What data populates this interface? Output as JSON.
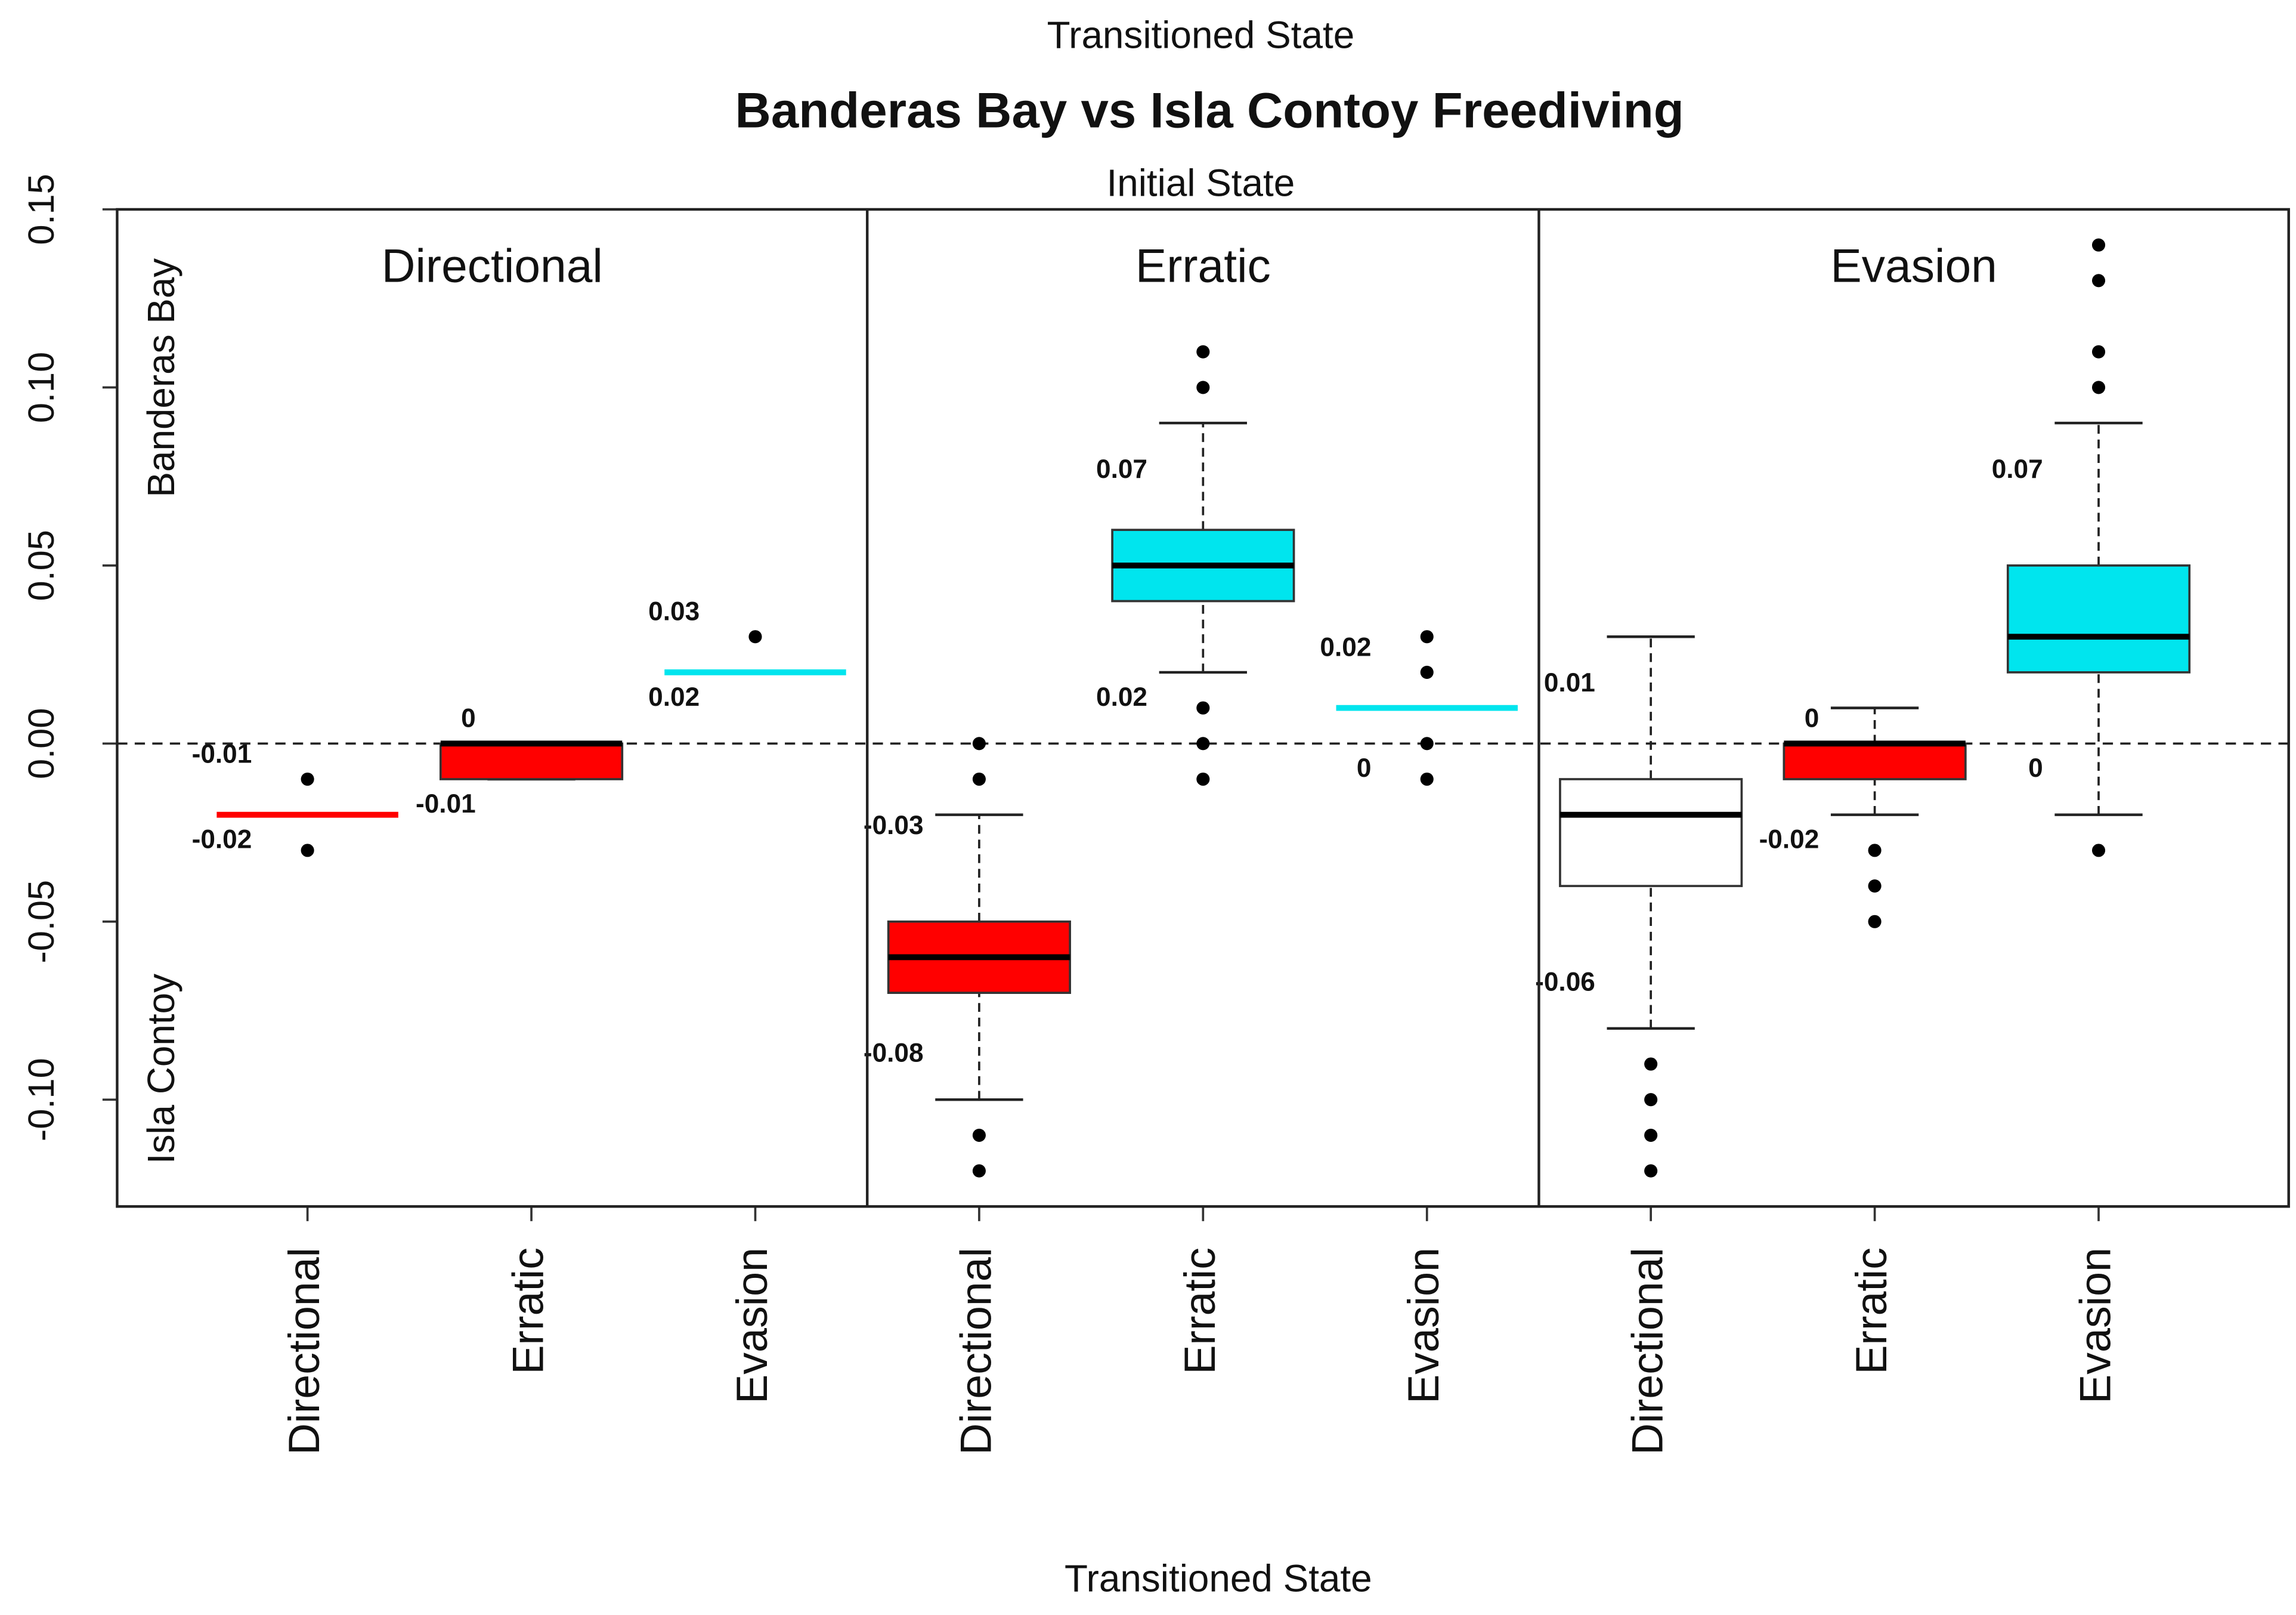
{
  "chart_data": {
    "type": "box",
    "top_label": "Transitioned State",
    "title": "Banderas Bay vs Isla Contoy Freediving",
    "panel_label": "Initial State",
    "xlabel": "Transitioned State",
    "group_labels": [
      "Banderas Bay",
      "Isla Contoy"
    ],
    "ylim": [
      -0.13,
      0.15
    ],
    "yticks": [
      0.15,
      {
        "value": 0.1,
        "label": "0.10"
      },
      0.05,
      {
        "value": 0,
        "label": "0.00"
      },
      -0.05,
      {
        "value": -0.1,
        "label": "-0.10"
      }
    ],
    "reference_line": 0,
    "panels": [
      {
        "name": "Directional",
        "categories": [
          "Directional",
          "Erratic",
          "Evasion"
        ],
        "boxes": [
          {
            "color": "#ff0000",
            "whislo": -0.02,
            "q1": -0.02,
            "med": -0.02,
            "q3": -0.02,
            "whishi": -0.02,
            "fliers": [
              -0.01,
              -0.03
            ],
            "labels": [
              -0.01,
              -0.02
            ]
          },
          {
            "color": "#ff0000",
            "whislo": -0.01,
            "q1": -0.01,
            "med": 0,
            "q3": 0,
            "whishi": 0,
            "fliers": [],
            "labels": [
              0,
              -0.01
            ]
          },
          {
            "color": "#00e5ee",
            "whislo": 0.02,
            "q1": 0.02,
            "med": 0.02,
            "q3": 0.02,
            "whishi": 0.02,
            "fliers": [
              0.03
            ],
            "labels": [
              0.03,
              0.02
            ]
          }
        ]
      },
      {
        "name": "Erratic",
        "categories": [
          "Directional",
          "Erratic",
          "Evasion"
        ],
        "boxes": [
          {
            "color": "#ff0000",
            "whislo": -0.1,
            "q1": -0.07,
            "med": -0.06,
            "q3": -0.05,
            "whishi": -0.02,
            "fliers": [
              0,
              -0.01,
              -0.11,
              -0.12
            ],
            "labels": [
              -0.03,
              -0.08
            ]
          },
          {
            "color": "#00e5ee",
            "whislo": 0.02,
            "q1": 0.04,
            "med": 0.05,
            "q3": 0.06,
            "whishi": 0.09,
            "fliers": [
              0.11,
              0.1,
              0.01,
              0,
              -0.01
            ],
            "labels": [
              0.07,
              0.02
            ]
          },
          {
            "color": "#00e5ee",
            "whislo": 0.01,
            "q1": 0.01,
            "med": 0.01,
            "q3": 0.01,
            "whishi": 0.01,
            "fliers": [
              0.03,
              0.02,
              0,
              -0.01
            ],
            "labels": [
              0.02,
              0
            ]
          }
        ]
      },
      {
        "name": "Evasion",
        "categories": [
          "Directional",
          "Erratic",
          "Evasion"
        ],
        "boxes": [
          {
            "color": "#ffffff",
            "whislo": -0.08,
            "q1": -0.04,
            "med": -0.02,
            "q3": -0.01,
            "whishi": 0.03,
            "fliers": [
              -0.09,
              -0.1,
              -0.11,
              -0.12
            ],
            "labels": [
              0.01,
              -0.06
            ]
          },
          {
            "color": "#ff0000",
            "whislo": -0.02,
            "q1": -0.01,
            "med": 0,
            "q3": 0,
            "whishi": 0.01,
            "fliers": [
              -0.03,
              -0.04,
              -0.05
            ],
            "labels": [
              0,
              -0.02
            ]
          },
          {
            "color": "#00e5ee",
            "whislo": -0.02,
            "q1": 0.02,
            "med": 0.03,
            "q3": 0.05,
            "whishi": 0.09,
            "fliers": [
              0.14,
              0.13,
              0.11,
              0.1,
              -0.03
            ],
            "labels": [
              0.07,
              0
            ]
          }
        ]
      }
    ]
  }
}
